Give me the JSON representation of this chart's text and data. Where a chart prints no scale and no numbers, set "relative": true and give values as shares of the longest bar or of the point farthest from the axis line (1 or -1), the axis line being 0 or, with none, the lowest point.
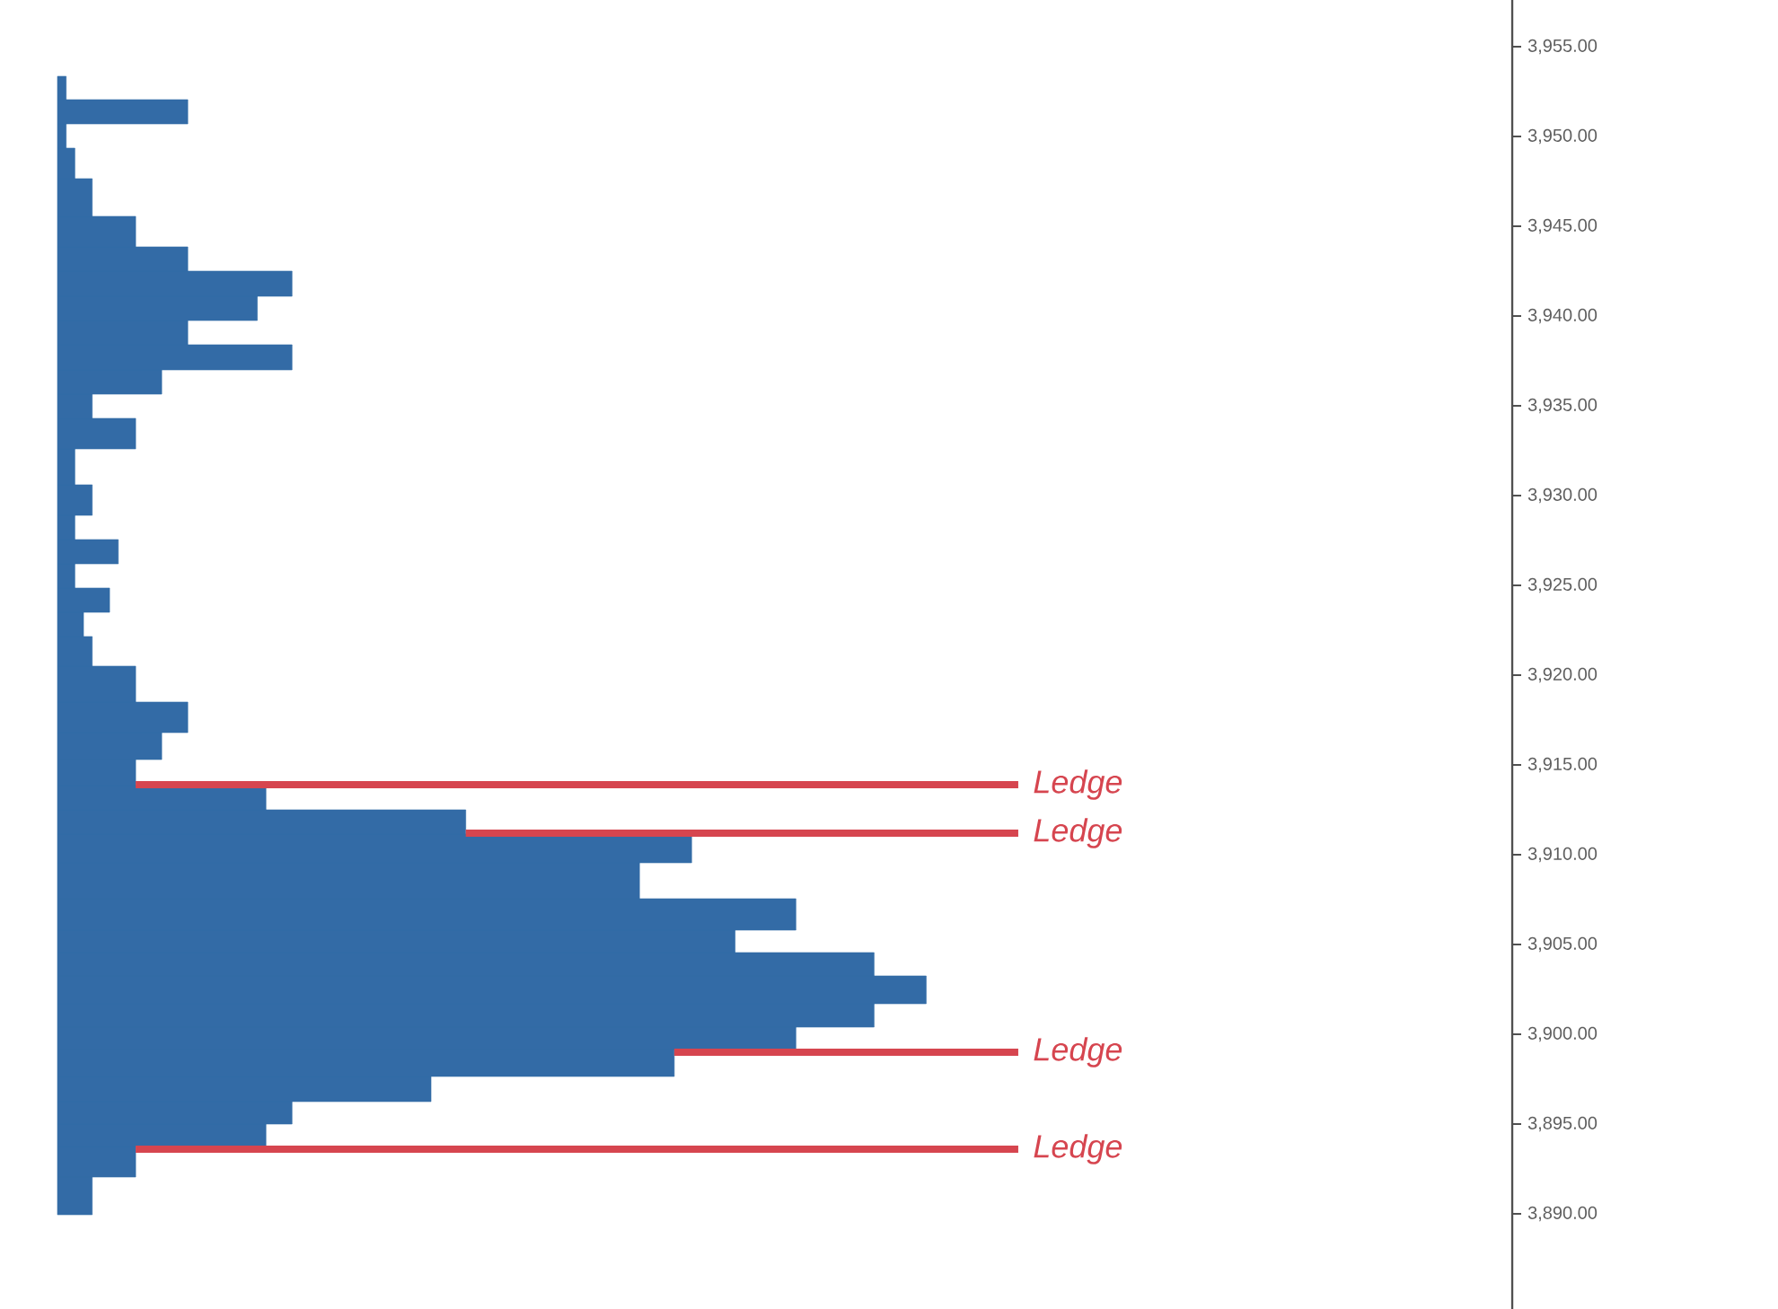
{
  "chart_data": {
    "type": "bar",
    "orientation": "horizontal",
    "relative": true,
    "color": "#336ba6",
    "x": [
      3891.0,
      3893.1,
      3894.4,
      3895.6,
      3896.9,
      3898.4,
      3899.9,
      3900.9,
      3902.5,
      3904.0,
      3905.1,
      3906.5,
      3908.6,
      3910.5,
      3911.8,
      3913.2,
      3914.5,
      3916.1,
      3917.5,
      3919.5,
      3921.5,
      3922.8,
      3924.2,
      3925.5,
      3926.9,
      3928.2,
      3929.6,
      3931.6,
      3933.6,
      3935.0,
      3936.3,
      3937.7,
      3939.1,
      3940.4,
      3941.8,
      3943.2,
      3944.5,
      3946.6,
      3948.7,
      3950.0,
      3951.4,
      3952.7
    ],
    "values": [
      0.04,
      0.09,
      0.24,
      0.27,
      0.43,
      0.71,
      0.85,
      0.94,
      1,
      0.94,
      0.78,
      0.85,
      0.67,
      0.73,
      0.47,
      0.24,
      0.09,
      0.12,
      0.15,
      0.09,
      0.04,
      0.03,
      0.06,
      0.02,
      0.07,
      0.02,
      0.04,
      0.02,
      0.09,
      0.04,
      0.12,
      0.27,
      0.15,
      0.23,
      0.27,
      0.15,
      0.09,
      0.04,
      0.02,
      0.01,
      0.15,
      0.01
    ],
    "ylim": [
      3884.7,
      3957.6
    ],
    "yticks": [
      {
        "value": 3890,
        "label": "3,890.00"
      },
      {
        "value": 3895,
        "label": "3,895.00"
      },
      {
        "value": 3900,
        "label": "3,900.00"
      },
      {
        "value": 3905,
        "label": "3,905.00"
      },
      {
        "value": 3910,
        "label": "3,910.00"
      },
      {
        "value": 3915,
        "label": "3,915.00"
      },
      {
        "value": 3920,
        "label": "3,920.00"
      },
      {
        "value": 3925,
        "label": "3,925.00"
      },
      {
        "value": 3930,
        "label": "3,930.00"
      },
      {
        "value": 3935,
        "label": "3,935.00"
      },
      {
        "value": 3940,
        "label": "3,940.00"
      },
      {
        "value": 3945,
        "label": "3,945.00"
      },
      {
        "value": 3950,
        "label": "3,950.00"
      },
      {
        "value": 3955,
        "label": "3,955.00"
      }
    ],
    "ref_lines": [
      {
        "axis": "y",
        "value": 3913.9,
        "label": "Ledge",
        "color": "#d6454f"
      },
      {
        "axis": "y",
        "value": 3911.2,
        "label": "Ledge",
        "color": "#d6454f"
      },
      {
        "axis": "y",
        "value": 3899.0,
        "label": "Ledge",
        "color": "#d6454f"
      },
      {
        "axis": "y",
        "value": 3893.6,
        "label": "Ledge",
        "color": "#d6454f"
      }
    ]
  }
}
